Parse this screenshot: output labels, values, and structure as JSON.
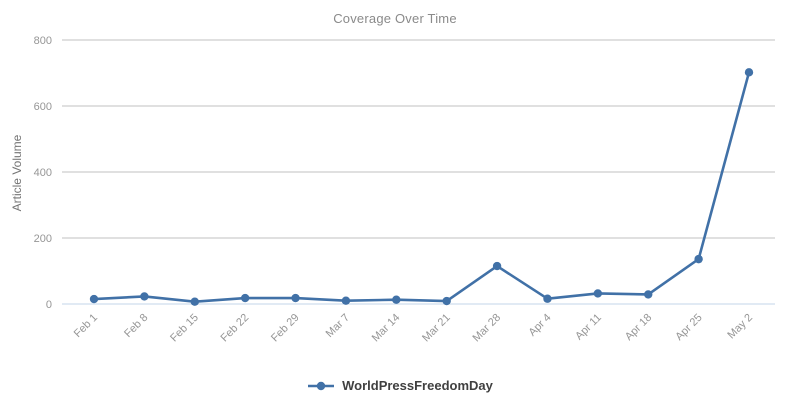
{
  "chart_data": {
    "type": "line",
    "title": "Coverage Over Time",
    "xlabel": "",
    "ylabel": "Article Volume",
    "categories": [
      "Feb 1",
      "Feb 8",
      "Feb 15",
      "Feb 22",
      "Feb 29",
      "Mar 7",
      "Mar 14",
      "Mar 21",
      "Mar 28",
      "Apr 4",
      "Apr 11",
      "Apr 18",
      "Apr 25",
      "May 2"
    ],
    "series": [
      {
        "name": "WorldPressFreedomDay",
        "values": [
          15,
          23,
          7,
          18,
          18,
          10,
          13,
          9,
          115,
          16,
          32,
          29,
          136,
          702
        ],
        "color": "#4171a7"
      }
    ],
    "ylim": [
      0,
      800
    ],
    "yticks": [
      0,
      200,
      400,
      600,
      800
    ],
    "grid": true,
    "legend_position": "bottom"
  },
  "colors": {
    "background": "#ffffff",
    "grid_line": "#c2c2c2",
    "zero_axis_line": "#c3d6e8",
    "title_text": "#8a8a8a",
    "tick_text": "#969696",
    "axis_label_text": "#757575",
    "legend_text": "#404040"
  }
}
